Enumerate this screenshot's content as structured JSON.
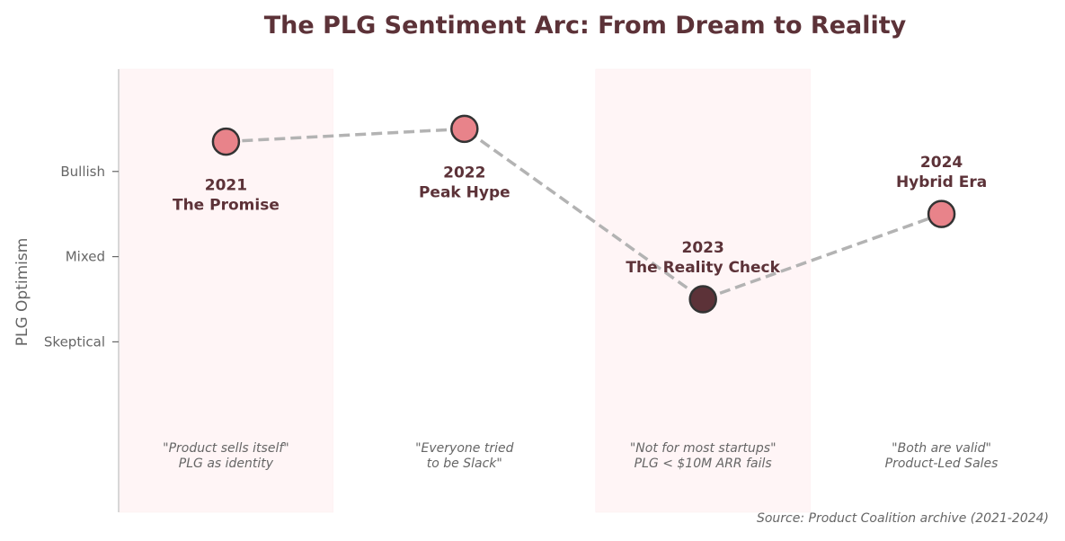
{
  "chart_data": {
    "type": "line",
    "title": "The PLG Sentiment Arc: From Dream to Reality",
    "ylabel": "PLG Optimism",
    "ytick_labels": [
      "Skeptical",
      "Mixed",
      "Bullish"
    ],
    "ytick_values": [
      1,
      2,
      3
    ],
    "ylim": [
      -1,
      4.2
    ],
    "xlim": [
      -0.45,
      3.45
    ],
    "grid": false,
    "points": [
      {
        "x": 0,
        "y": 3.35,
        "year": "2021",
        "name": "The Promise",
        "quote_lines": [
          "\"Product sells itself\"",
          "PLG as identity"
        ],
        "shaded": true,
        "color": "#E8838A"
      },
      {
        "x": 1,
        "y": 3.5,
        "year": "2022",
        "name": "Peak Hype",
        "quote_lines": [
          "\"Everyone tried",
          "to be Slack\""
        ],
        "shaded": false,
        "color": "#E8838A"
      },
      {
        "x": 2,
        "y": 1.5,
        "year": "2023",
        "name": "The Reality Check",
        "quote_lines": [
          "\"Not for most startups\"",
          "PLG < $10M ARR fails"
        ],
        "shaded": true,
        "color": "#5C3238"
      },
      {
        "x": 3,
        "y": 2.5,
        "year": "2024",
        "name": "Hybrid Era",
        "quote_lines": [
          "\"Both are valid\"",
          "Product-Led Sales"
        ],
        "shaded": false,
        "color": "#E8838A"
      }
    ],
    "source": "Source: Product Coalition archive (2021-2024)",
    "colors": {
      "title": "#5C3238",
      "label": "#5C3238",
      "line": "#B3B3B3",
      "marker_edge": "#333333",
      "shade": "#FFF5F6",
      "axis": "#CCCCCC",
      "tick_text": "#666666",
      "quote_text": "#666666"
    }
  }
}
